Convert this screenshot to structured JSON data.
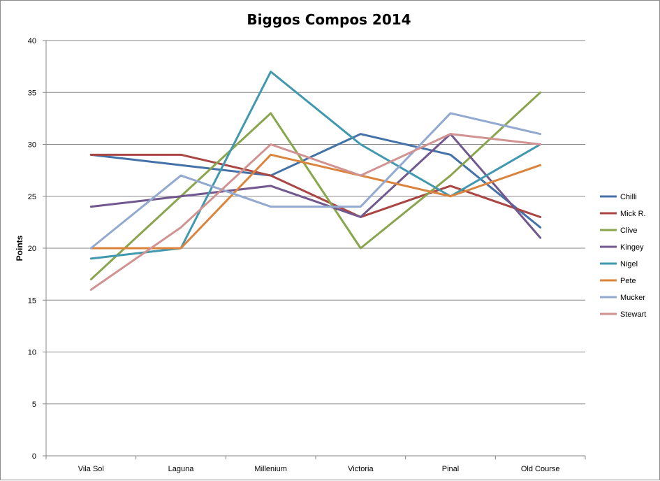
{
  "chart_data": {
    "type": "line",
    "title": "Biggos Compos 2014",
    "xlabel": "",
    "ylabel": "Points",
    "categories": [
      "Vila Sol",
      "Laguna",
      "Millenium",
      "Victoria",
      "Pinal",
      "Old Course"
    ],
    "ylim": [
      0,
      40
    ],
    "ytick_step": 5,
    "grid": "horizontal",
    "legend_position": "right",
    "series": [
      {
        "name": "Chilli",
        "color": "#4472a8",
        "values": [
          29,
          28,
          27,
          31,
          29,
          22
        ]
      },
      {
        "name": "Mick R.",
        "color": "#aa4643",
        "values": [
          29,
          29,
          27,
          23,
          26,
          23
        ]
      },
      {
        "name": "Clive",
        "color": "#89a54e",
        "values": [
          17,
          25,
          33,
          20,
          27,
          35
        ]
      },
      {
        "name": "Kingey",
        "color": "#71588f",
        "values": [
          24,
          25,
          26,
          23,
          31,
          21
        ]
      },
      {
        "name": "Nigel",
        "color": "#4198af",
        "values": [
          19,
          20,
          37,
          30,
          25,
          30
        ]
      },
      {
        "name": "Pete",
        "color": "#db843d",
        "values": [
          20,
          20,
          29,
          27,
          25,
          28
        ]
      },
      {
        "name": "Mucker",
        "color": "#93a9cf",
        "values": [
          20,
          27,
          24,
          24,
          33,
          31
        ]
      },
      {
        "name": "Stewart",
        "color": "#d19392",
        "values": [
          16,
          22,
          30,
          27,
          31,
          30
        ]
      }
    ]
  }
}
